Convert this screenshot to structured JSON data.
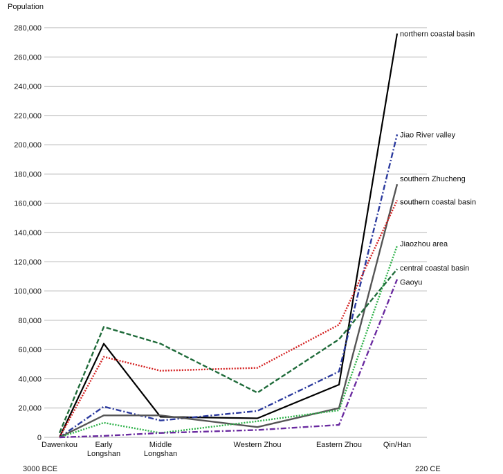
{
  "chart_data": {
    "type": "line",
    "ylabel": "Population",
    "xlabel": "",
    "ylim": [
      0,
      280000
    ],
    "yticks": [
      0,
      20000,
      40000,
      60000,
      80000,
      100000,
      120000,
      140000,
      160000,
      180000,
      200000,
      220000,
      240000,
      260000,
      280000
    ],
    "ytick_labels": [
      "0",
      "20,000",
      "40,000",
      "60,000",
      "80,000",
      "100,000",
      "120,000",
      "140,000",
      "160,000",
      "180,000",
      "200,000",
      "220,000",
      "240,000",
      "260,000",
      "280,000"
    ],
    "grid": true,
    "categories": [
      {
        "lines": [
          "Dawenkou"
        ]
      },
      {
        "lines": [
          "Early",
          "Longshan"
        ]
      },
      {
        "lines": [
          "Middle",
          "Longshan"
        ]
      },
      {
        "lines": [
          "Western Zhou"
        ]
      },
      {
        "lines": [
          "Eastern Zhou"
        ]
      },
      {
        "lines": [
          "Qin/Han"
        ]
      }
    ],
    "time_start_label": "3000 BCE",
    "time_end_label": "220 CE",
    "series": [
      {
        "name": "northern coastal basin",
        "color": "#000000",
        "dash": "solid",
        "values": [
          0,
          64000,
          14000,
          13000,
          36000,
          276000
        ]
      },
      {
        "name": "Jiao River valley",
        "color": "#2b3a9e",
        "dash": "dashdot",
        "values": [
          0,
          21000,
          11500,
          18000,
          45000,
          207000
        ]
      },
      {
        "name": "southern Zhucheng",
        "color": "#555555",
        "dash": "solid",
        "values": [
          0,
          15000,
          15000,
          7000,
          20000,
          173000
        ]
      },
      {
        "name": "southern coastal basin",
        "color": "#d42020",
        "dash": "dotted",
        "values": [
          0,
          55000,
          45500,
          47500,
          77000,
          162000
        ]
      },
      {
        "name": "Jiaozhou area",
        "color": "#2fb24a",
        "dash": "dotted",
        "values": [
          0,
          10000,
          3000,
          11000,
          18500,
          131000
        ]
      },
      {
        "name": "central coastal basin",
        "color": "#1f6b3a",
        "dash": "dashed",
        "values": [
          3000,
          75500,
          64000,
          30500,
          67000,
          115000
        ]
      },
      {
        "name": "Gaoyu",
        "color": "#6a2aa0",
        "dash": "dashdot",
        "values": [
          0,
          1000,
          3000,
          5000,
          8500,
          108000
        ]
      }
    ]
  }
}
